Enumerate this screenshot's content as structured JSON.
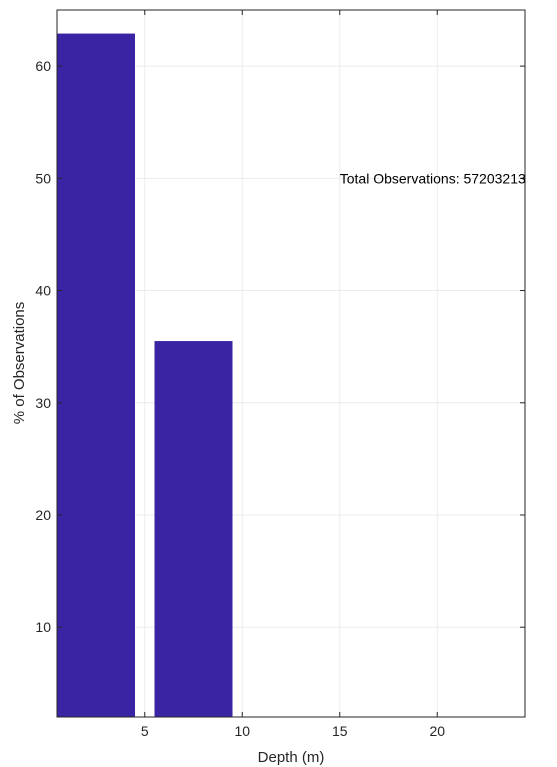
{
  "chart_data": {
    "type": "bar",
    "title": "",
    "xlabel": "Depth (m)",
    "ylabel": "% of Observations",
    "x": [
      2.5,
      7.5
    ],
    "values": [
      62.9,
      35.5
    ],
    "bin_width": 5,
    "xlim": [
      0.5,
      24.5
    ],
    "ylim": [
      2,
      65
    ],
    "xticks": [
      5,
      10,
      15,
      20
    ],
    "yticks": [
      10,
      20,
      30,
      40,
      50,
      60
    ],
    "grid": true,
    "bar_color": "#3b24a3",
    "annotation": {
      "text": "Total Observations: 57203213",
      "x": 15,
      "y": 50
    }
  }
}
